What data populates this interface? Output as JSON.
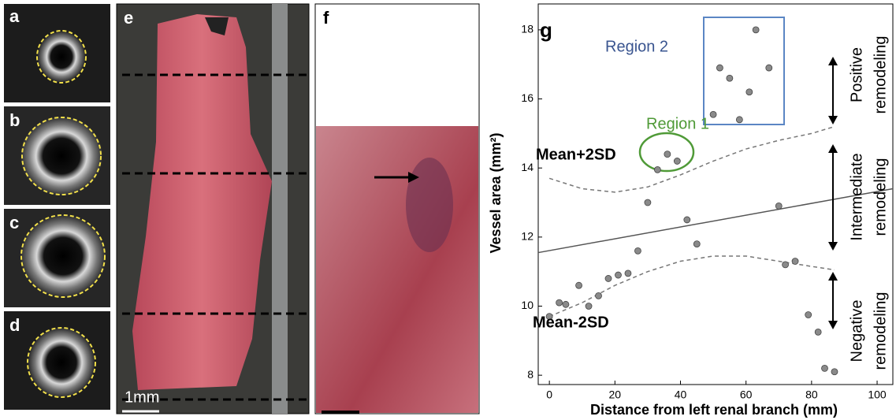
{
  "panel_labels": [
    "a",
    "b",
    "c",
    "d",
    "e",
    "f"
  ],
  "scale_label": "1mm",
  "chart_data": {
    "type": "scatter",
    "panel_label": "g",
    "x_label": "Distance from left renal branch (mm)",
    "y_label": "Vessel area (mm²)",
    "xlim": [
      -3.4,
      104.8
    ],
    "ylim": [
      7.73,
      18.75
    ],
    "xticks": [
      0,
      20,
      40,
      60,
      80,
      100
    ],
    "yticks": [
      8,
      10,
      12,
      14,
      16,
      18
    ],
    "series": [
      {
        "color": "#8a8a8a",
        "x": [
          0,
          3,
          5,
          9,
          12,
          15,
          18,
          21,
          24,
          27,
          30,
          33,
          36,
          39,
          42,
          45,
          50,
          52,
          55,
          58,
          61,
          63,
          67,
          70,
          72,
          75,
          79,
          82,
          84,
          87
        ],
        "values": [
          9.7,
          10.1,
          10.05,
          10.6,
          10.0,
          10.3,
          10.8,
          10.9,
          10.95,
          11.6,
          13.0,
          13.95,
          14.4,
          14.2,
          12.5,
          11.8,
          15.55,
          16.9,
          16.6,
          15.4,
          16.2,
          18.0,
          16.9,
          12.9,
          11.2,
          11.3,
          9.75,
          9.25,
          8.2,
          8.1
        ]
      }
    ],
    "fit": {
      "color": "#555555",
      "x": [
        -3.4,
        104.8
      ],
      "values": [
        11.55,
        13.4
      ]
    },
    "bounds": [
      {
        "color": "#777777",
        "x": [
          0,
          10,
          20,
          30,
          40,
          50,
          60,
          70,
          80,
          87
        ],
        "values": [
          13.7,
          13.4,
          13.3,
          13.45,
          13.8,
          14.2,
          14.55,
          14.8,
          15.0,
          15.2
        ]
      },
      {
        "color": "#777777",
        "x": [
          0,
          10,
          20,
          30,
          40,
          50,
          60,
          70,
          80,
          87
        ],
        "values": [
          9.7,
          10.1,
          10.6,
          11.0,
          11.3,
          11.45,
          11.45,
          11.3,
          11.15,
          11.05
        ]
      }
    ],
    "annotations": [
      "Region 2",
      "Region 1",
      "Mean+2SD",
      "Mean-2SD"
    ],
    "side_labels": [
      [
        "Positive",
        "remodeling"
      ],
      [
        "Intermediate",
        "remodeling"
      ],
      [
        "Negative",
        "remodeling"
      ]
    ]
  }
}
